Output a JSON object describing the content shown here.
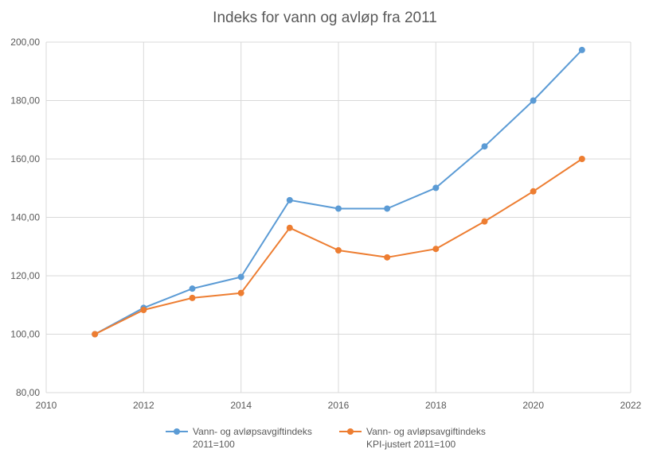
{
  "chart_data": {
    "type": "line",
    "title": "Indeks for vann og avløp fra 2011",
    "xlabel": "",
    "ylabel": "",
    "xlim": [
      2010,
      2022
    ],
    "ylim": [
      80,
      200
    ],
    "x_ticks": [
      "2010",
      "2012",
      "2014",
      "2016",
      "2018",
      "2020",
      "2022"
    ],
    "y_ticks": [
      "80,00",
      "100,00",
      "120,00",
      "140,00",
      "160,00",
      "180,00",
      "200,00"
    ],
    "grid": true,
    "legend_position": "bottom",
    "x": [
      2011,
      2012,
      2013,
      2014,
      2015,
      2016,
      2017,
      2018,
      2019,
      2020,
      2021
    ],
    "series": [
      {
        "name": [
          "Vann- og avløpsavgiftindeks",
          "2011=100"
        ],
        "color": "#5B9BD5",
        "values": [
          100.0,
          109.0,
          115.6,
          119.6,
          145.9,
          143.0,
          143.0,
          150.1,
          164.3,
          180.0,
          197.3
        ]
      },
      {
        "name": [
          "Vann- og avløpsavgiftindeks",
          "KPI-justert 2011=100"
        ],
        "color": "#ED7D31",
        "values": [
          100.0,
          108.3,
          112.4,
          114.1,
          136.4,
          128.7,
          126.3,
          129.2,
          138.6,
          148.9,
          160.0
        ]
      }
    ]
  }
}
